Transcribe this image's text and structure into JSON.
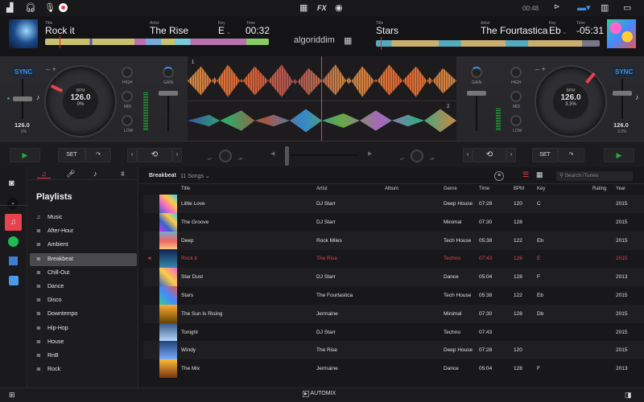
{
  "topbar": {
    "clock": "00:48",
    "fx_label": "FX",
    "icons": [
      "equalizer-icon",
      "headphones-icon",
      "microphone-icon",
      "record-icon",
      "grid-icon",
      "fx-icon",
      "sampler-icon",
      "video-icon",
      "layout-icon",
      "columns-icon",
      "display-icon"
    ]
  },
  "logo": "algoriddim",
  "labels": {
    "title": "Title",
    "artist": "Artist",
    "key": "Key",
    "time": "Time",
    "bpm": "BPM",
    "high": "HIGH",
    "mid": "MID",
    "low": "LOW",
    "gain": "GAIN",
    "lp": "LP",
    "hp": "HP",
    "sync": "SYNC",
    "set": "SET"
  },
  "deck_left": {
    "title": "Rock it",
    "artist": "The Rise",
    "key": "E",
    "time": "00:32",
    "bpm": "126.0",
    "pitch": "0%",
    "tempo": "126.0",
    "tempo_pct": "0%",
    "deck_number": "1",
    "accent": "#e8414f"
  },
  "deck_right": {
    "title": "Stars",
    "artist": "The Fourtastica",
    "key": "Eb",
    "time": "-05:31",
    "bpm": "126.0",
    "pitch": "3.3%",
    "tempo": "126.0",
    "tempo_pct": "3.3%",
    "deck_number": "2"
  },
  "library": {
    "tabs": [
      "playlists-tab",
      "artists-tab",
      "songs-tab",
      "sampler-tab"
    ],
    "playlists_title": "Playlists",
    "playlists": [
      "Music",
      "After-Hour",
      "Ambient",
      "Breakbeat",
      "Chill-Out",
      "Dance",
      "Disco",
      "Downtempo",
      "Hip-Hop",
      "House",
      "RnB",
      "Rock"
    ],
    "selected_playlist": "Breakbeat",
    "sources": [
      "itunes",
      "spotify",
      "videos",
      "finder"
    ],
    "header": {
      "playlist": "Breakbeat",
      "count": "11 Songs",
      "search_placeholder": "Search iTunes"
    },
    "columns": [
      "Title",
      "Artist",
      "Album",
      "Genre",
      "Time",
      "BPM",
      "Key",
      "Rating",
      "Year"
    ],
    "rows": [
      {
        "title": "Little Love",
        "artist": "DJ Starr",
        "album": "",
        "genre": "Deep House",
        "time": "07:28",
        "bpm": "120",
        "key": "C",
        "year": "2015"
      },
      {
        "title": "The Groove",
        "artist": "DJ Starr",
        "album": "",
        "genre": "Minimal",
        "time": "07:30",
        "bpm": "128",
        "key": "",
        "year": "2015"
      },
      {
        "title": "Deep",
        "artist": "Rock Miles",
        "album": "",
        "genre": "Tech House",
        "time": "05:38",
        "bpm": "122",
        "key": "Eb",
        "year": "2015"
      },
      {
        "title": "Rock it",
        "artist": "The Rise",
        "album": "",
        "genre": "Techno",
        "time": "07:43",
        "bpm": "126",
        "key": "E",
        "year": "2015",
        "playing": true
      },
      {
        "title": "Star Dust",
        "artist": "DJ Starr",
        "album": "",
        "genre": "Dance",
        "time": "05:04",
        "bpm": "128",
        "key": "F",
        "year": "2013"
      },
      {
        "title": "Stars",
        "artist": "The Fourtastica",
        "album": "",
        "genre": "Tech House",
        "time": "05:38",
        "bpm": "122",
        "key": "Eb",
        "year": "2015"
      },
      {
        "title": "The Sun Is Rising",
        "artist": "Jermaine",
        "album": "",
        "genre": "Minimal",
        "time": "07:30",
        "bpm": "128",
        "key": "Db",
        "year": "2015"
      },
      {
        "title": "Tonight",
        "artist": "DJ Starr",
        "album": "",
        "genre": "Techno",
        "time": "07:43",
        "bpm": "",
        "key": "",
        "year": "2015"
      },
      {
        "title": "Windy",
        "artist": "The Rise",
        "album": "",
        "genre": "Deep House",
        "time": "07:28",
        "bpm": "120",
        "key": "",
        "year": "2015"
      },
      {
        "title": "The Mix",
        "artist": "Jermaine",
        "album": "",
        "genre": "Dance",
        "time": "05:04",
        "bpm": "128",
        "key": "F",
        "year": "2013"
      }
    ]
  },
  "bottom": {
    "automix": "AUTOMIX"
  }
}
